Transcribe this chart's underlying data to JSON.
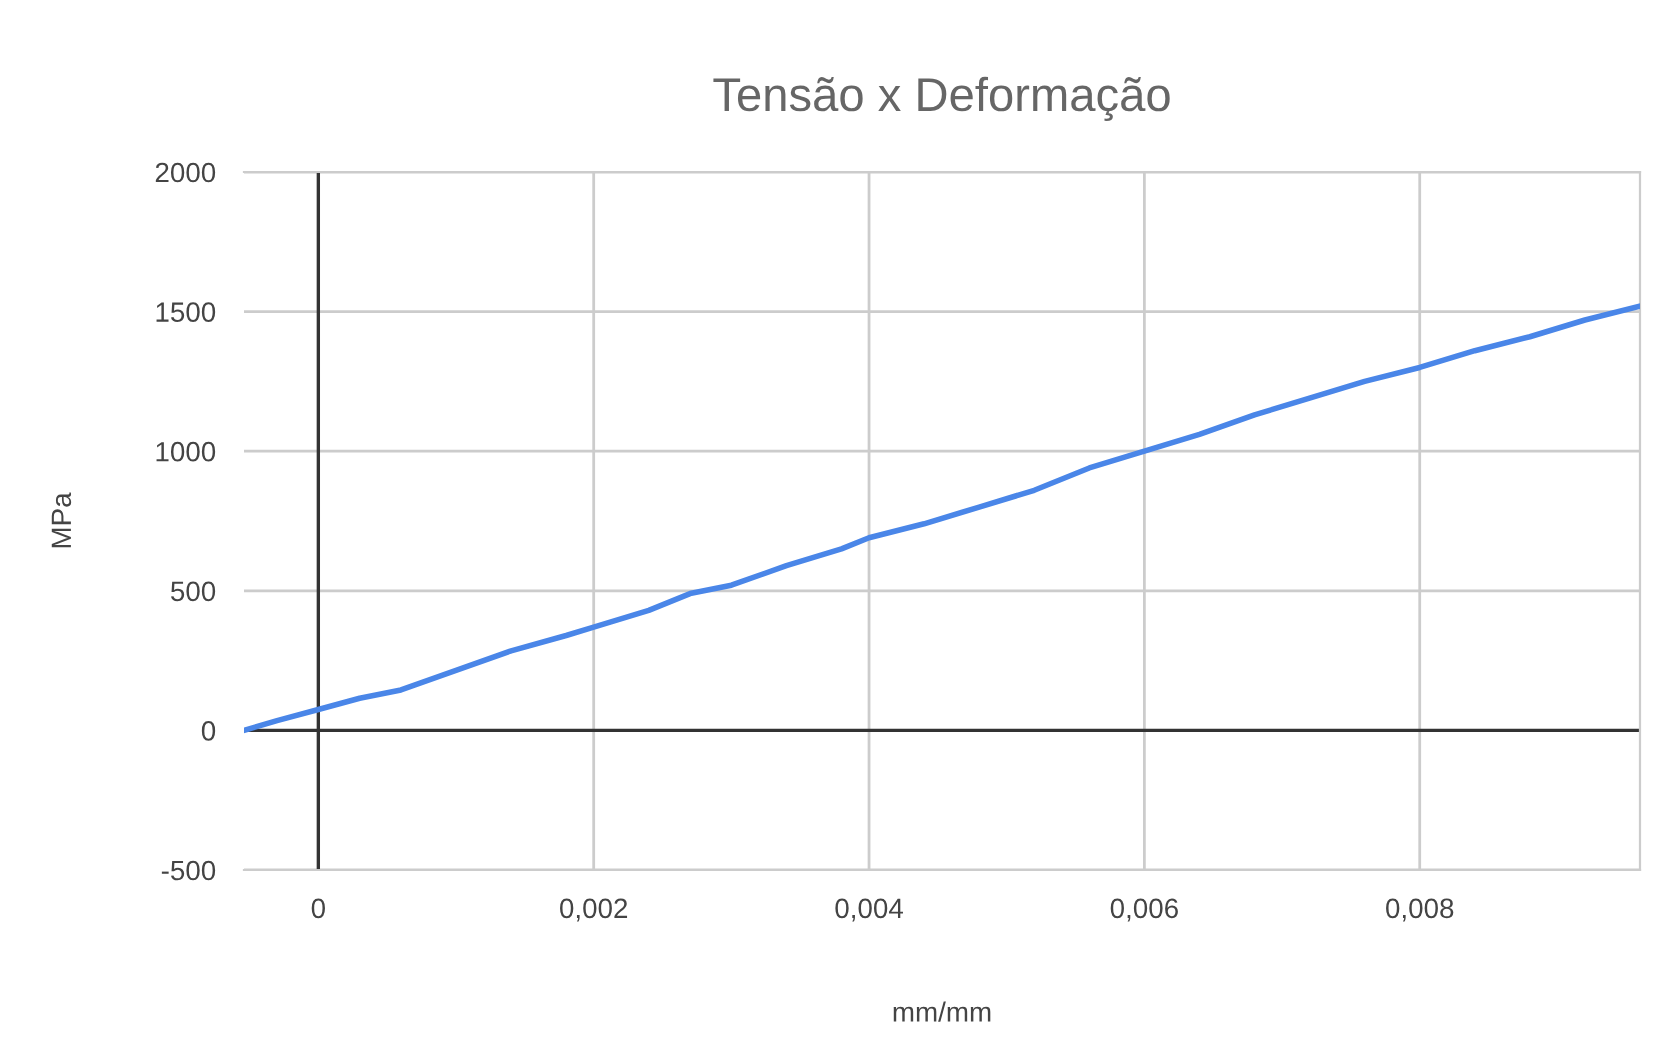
{
  "chart_data": {
    "type": "line",
    "title": "Tensão x Deformação",
    "xlabel": "mm/mm",
    "ylabel": "MPa",
    "x": [
      -0.00054,
      -0.0003,
      0,
      0.0003,
      0.0006,
      0.001,
      0.0014,
      0.0018,
      0.002,
      0.0024,
      0.0027,
      0.003,
      0.0034,
      0.0038,
      0.004,
      0.0044,
      0.0048,
      0.0052,
      0.0056,
      0.006,
      0.0064,
      0.0068,
      0.0072,
      0.0076,
      0.008,
      0.0084,
      0.0088,
      0.0092,
      0.0096
    ],
    "series": [
      {
        "color": "#4a86e8",
        "values": [
          0,
          35,
          75,
          115,
          145,
          215,
          285,
          340,
          370,
          430,
          490,
          520,
          590,
          650,
          690,
          740,
          800,
          860,
          940,
          1000,
          1060,
          1130,
          1190,
          1250,
          1300,
          1360,
          1410,
          1470,
          1520
        ]
      }
    ],
    "xlim": [
      -0.00054,
      0.0096
    ],
    "ylim": [
      -500,
      2000
    ],
    "xticks": [
      {
        "value": 0,
        "label": "0"
      },
      {
        "value": 0.002,
        "label": "0,002"
      },
      {
        "value": 0.004,
        "label": "0,004"
      },
      {
        "value": 0.006,
        "label": "0,006"
      },
      {
        "value": 0.008,
        "label": "0,008"
      }
    ],
    "yticks": [
      -500,
      0,
      500,
      1000,
      1500,
      2000
    ],
    "grid": true,
    "legend": false,
    "marker": "none",
    "line_style": "solid"
  }
}
